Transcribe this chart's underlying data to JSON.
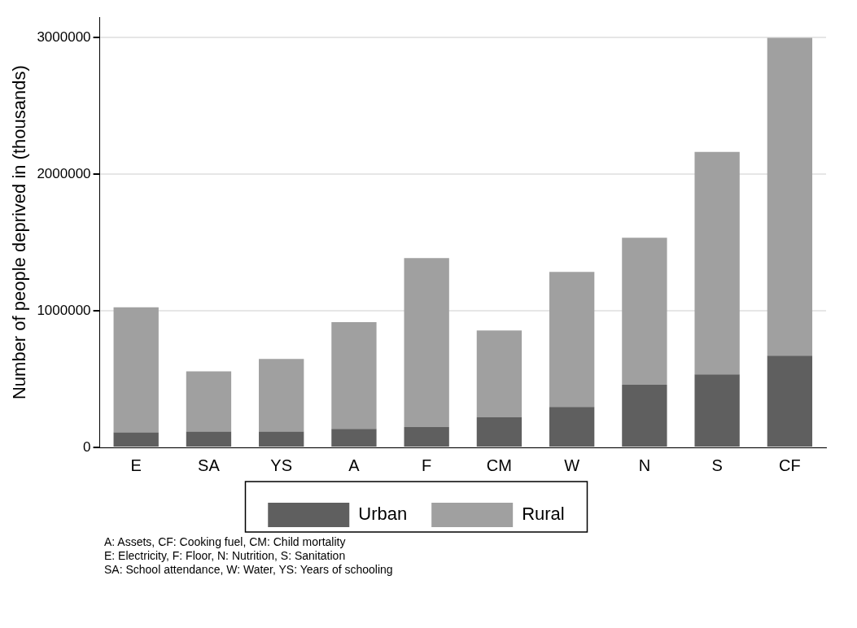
{
  "chart_data": {
    "type": "bar",
    "stacked": true,
    "ylabel": "Number of people deprived in (thousands)",
    "categories": [
      "E",
      "SA",
      "YS",
      "A",
      "F",
      "CM",
      "W",
      "N",
      "S",
      "CF"
    ],
    "series": [
      {
        "name": "Urban",
        "color": "#5f5f5f",
        "values": [
          110000,
          116000,
          116000,
          135000,
          149000,
          220000,
          296000,
          458000,
          534000,
          671000
        ]
      },
      {
        "name": "Rural",
        "color": "#a0a0a0",
        "values": [
          916000,
          441000,
          532000,
          782000,
          1237000,
          636000,
          989000,
          1078000,
          1630000,
          2329000
        ]
      }
    ],
    "ylim": [
      0,
      3150000
    ],
    "yticks": [
      0,
      1000000,
      2000000,
      3000000
    ],
    "grid": "y",
    "legend": "bottom",
    "annotations": [
      "A: Assets, CF: Cooking fuel, CM: Child mortality",
      "E: Electricity, F: Floor, N: Nutrition, S: Sanitation",
      "SA: School attendance, W: Water, YS: Years of schooling"
    ]
  }
}
